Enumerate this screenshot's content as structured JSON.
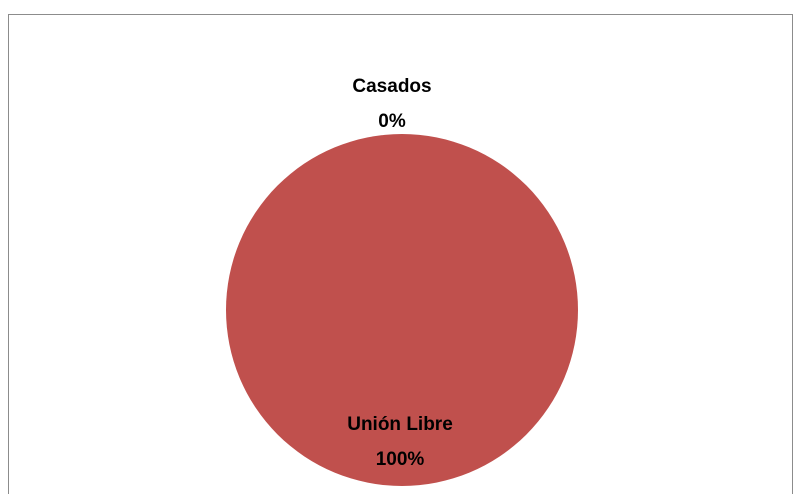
{
  "chart_data": {
    "type": "pie",
    "title": "",
    "categories": [
      "Casados",
      "Unión Libre"
    ],
    "values": [
      0,
      100
    ],
    "percent_labels": [
      "0%",
      "100%"
    ],
    "colors": [
      "#4f81bd",
      "#c0504d"
    ],
    "legend": "none",
    "data_labels": "category and percentage"
  }
}
